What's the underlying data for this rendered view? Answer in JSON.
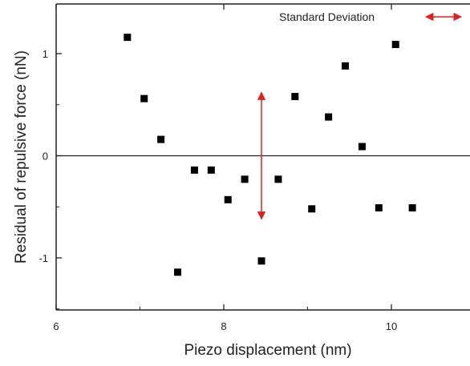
{
  "chart_data": {
    "type": "scatter",
    "title": "",
    "xlabel": "Piezo displacement  (nm)",
    "ylabel": "Residual of repulsive force  (nN)",
    "xlim": [
      6,
      11
    ],
    "ylim": [
      -1.5,
      1.5
    ],
    "x_ticks": [
      6,
      8,
      10
    ],
    "y_ticks": [
      -1,
      0,
      1
    ],
    "x_tick_labels": [
      "6",
      "8",
      "10"
    ],
    "y_tick_labels": [
      "-1",
      "0",
      "1"
    ],
    "reference_line_y": 0,
    "grid": false,
    "series": [
      {
        "marker": "square",
        "color": "#000000",
        "points": [
          {
            "x": 6.85,
            "y": 1.16
          },
          {
            "x": 7.05,
            "y": 0.56
          },
          {
            "x": 7.25,
            "y": 0.16
          },
          {
            "x": 7.45,
            "y": -1.14
          },
          {
            "x": 7.65,
            "y": -0.14
          },
          {
            "x": 7.85,
            "y": -0.14
          },
          {
            "x": 8.05,
            "y": -0.43
          },
          {
            "x": 8.25,
            "y": -0.23
          },
          {
            "x": 8.45,
            "y": -1.03
          },
          {
            "x": 8.65,
            "y": -0.23
          },
          {
            "x": 8.85,
            "y": 0.58
          },
          {
            "x": 9.05,
            "y": -0.52
          },
          {
            "x": 9.25,
            "y": 0.38
          },
          {
            "x": 9.45,
            "y": 0.88
          },
          {
            "x": 9.65,
            "y": 0.09
          },
          {
            "x": 9.85,
            "y": -0.51
          },
          {
            "x": 10.05,
            "y": 1.09
          },
          {
            "x": 10.25,
            "y": -0.51
          }
        ]
      }
    ],
    "annotation": {
      "label": "Standard Deviation",
      "color": "#e0201b",
      "arrow_x": 8.45,
      "y_from": -0.62,
      "y_to": 0.62
    },
    "legend_placement": "top-right"
  }
}
